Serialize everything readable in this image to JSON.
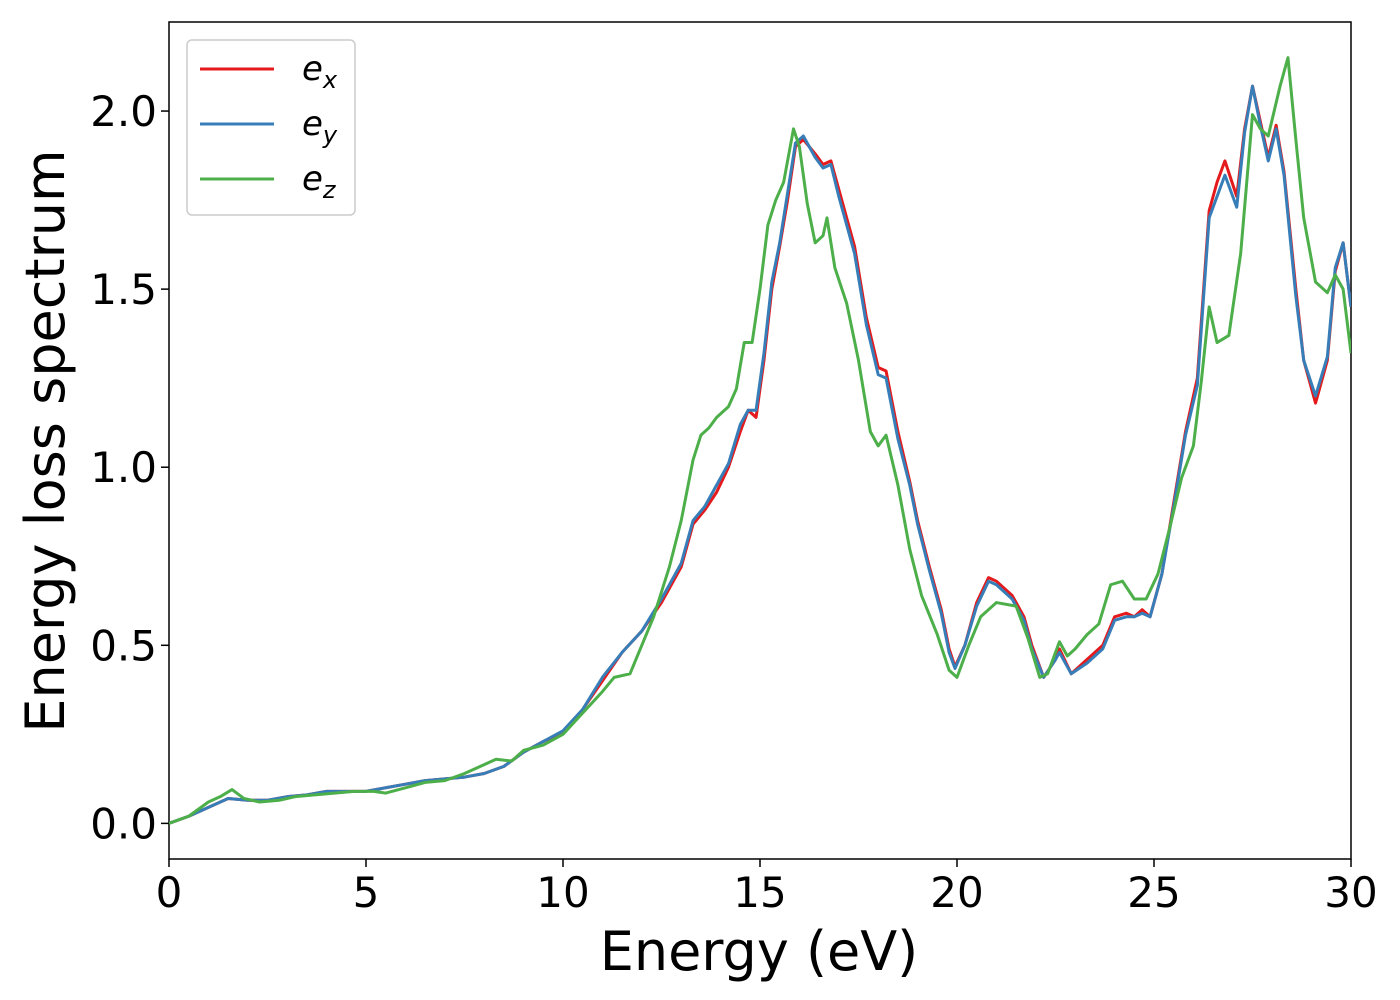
{
  "chart_data": {
    "type": "line",
    "title": "",
    "xlabel": "Energy (eV)",
    "ylabel": "Energy loss spectrum",
    "xlim": [
      0,
      30
    ],
    "ylim": [
      -0.1,
      2.25
    ],
    "xticks": [
      0,
      5,
      10,
      15,
      20,
      25,
      30
    ],
    "yticks": [
      0.0,
      0.5,
      1.0,
      1.5,
      2.0
    ],
    "xtick_labels": [
      "0",
      "5",
      "10",
      "15",
      "20",
      "25",
      "30"
    ],
    "ytick_labels": [
      "0.0",
      "0.5",
      "1.0",
      "1.5",
      "2.0"
    ],
    "grid": false,
    "legend": {
      "placement": "top-left"
    },
    "series": [
      {
        "name": "e",
        "sub": "x",
        "color": "#e41a1c",
        "points": [
          [
            0,
            0
          ],
          [
            0.5,
            0.02
          ],
          [
            1,
            0.045
          ],
          [
            1.5,
            0.07
          ],
          [
            2,
            0.065
          ],
          [
            2.5,
            0.065
          ],
          [
            3,
            0.075
          ],
          [
            3.5,
            0.08
          ],
          [
            4,
            0.09
          ],
          [
            4.5,
            0.09
          ],
          [
            5,
            0.09
          ],
          [
            5.5,
            0.1
          ],
          [
            6,
            0.11
          ],
          [
            6.5,
            0.12
          ],
          [
            7,
            0.125
          ],
          [
            7.5,
            0.13
          ],
          [
            8,
            0.14
          ],
          [
            8.5,
            0.16
          ],
          [
            9,
            0.2
          ],
          [
            9.5,
            0.23
          ],
          [
            10,
            0.255
          ],
          [
            10.5,
            0.32
          ],
          [
            11,
            0.4
          ],
          [
            11.5,
            0.48
          ],
          [
            12,
            0.54
          ],
          [
            12.5,
            0.62
          ],
          [
            13,
            0.72
          ],
          [
            13.3,
            0.84
          ],
          [
            13.6,
            0.88
          ],
          [
            13.9,
            0.93
          ],
          [
            14.2,
            1.0
          ],
          [
            14.5,
            1.1
          ],
          [
            14.7,
            1.16
          ],
          [
            14.9,
            1.14
          ],
          [
            15.1,
            1.3
          ],
          [
            15.3,
            1.5
          ],
          [
            15.5,
            1.62
          ],
          [
            15.7,
            1.75
          ],
          [
            15.9,
            1.9
          ],
          [
            16.1,
            1.92
          ],
          [
            16.4,
            1.88
          ],
          [
            16.6,
            1.85
          ],
          [
            16.8,
            1.86
          ],
          [
            17,
            1.78
          ],
          [
            17.4,
            1.62
          ],
          [
            17.7,
            1.42
          ],
          [
            18,
            1.28
          ],
          [
            18.2,
            1.27
          ],
          [
            18.5,
            1.1
          ],
          [
            18.8,
            0.96
          ],
          [
            19,
            0.85
          ],
          [
            19.3,
            0.72
          ],
          [
            19.6,
            0.6
          ],
          [
            19.8,
            0.49
          ],
          [
            19.95,
            0.44
          ],
          [
            20.2,
            0.5
          ],
          [
            20.5,
            0.62
          ],
          [
            20.8,
            0.69
          ],
          [
            21,
            0.68
          ],
          [
            21.4,
            0.64
          ],
          [
            21.7,
            0.58
          ],
          [
            21.9,
            0.5
          ],
          [
            22.2,
            0.41
          ],
          [
            22.5,
            0.46
          ],
          [
            22.6,
            0.49
          ],
          [
            22.9,
            0.42
          ],
          [
            23.3,
            0.46
          ],
          [
            23.7,
            0.5
          ],
          [
            24,
            0.58
          ],
          [
            24.3,
            0.59
          ],
          [
            24.5,
            0.58
          ],
          [
            24.7,
            0.6
          ],
          [
            24.9,
            0.58
          ],
          [
            25.2,
            0.7
          ],
          [
            25.5,
            0.9
          ],
          [
            25.8,
            1.1
          ],
          [
            26.1,
            1.25
          ],
          [
            26.4,
            1.72
          ],
          [
            26.6,
            1.8
          ],
          [
            26.8,
            1.86
          ],
          [
            27.1,
            1.76
          ],
          [
            27.3,
            1.95
          ],
          [
            27.5,
            2.07
          ],
          [
            27.7,
            1.97
          ],
          [
            27.9,
            1.87
          ],
          [
            28.1,
            1.96
          ],
          [
            28.3,
            1.83
          ],
          [
            28.6,
            1.5
          ],
          [
            28.8,
            1.3
          ],
          [
            29.1,
            1.18
          ],
          [
            29.4,
            1.3
          ],
          [
            29.6,
            1.55
          ],
          [
            29.8,
            1.63
          ],
          [
            30,
            1.45
          ]
        ]
      },
      {
        "name": "e",
        "sub": "y",
        "color": "#377eb8",
        "points": [
          [
            0,
            0
          ],
          [
            0.5,
            0.02
          ],
          [
            1,
            0.045
          ],
          [
            1.5,
            0.07
          ],
          [
            2,
            0.065
          ],
          [
            2.5,
            0.065
          ],
          [
            3,
            0.075
          ],
          [
            3.5,
            0.08
          ],
          [
            4,
            0.09
          ],
          [
            4.5,
            0.09
          ],
          [
            5,
            0.09
          ],
          [
            5.5,
            0.1
          ],
          [
            6,
            0.11
          ],
          [
            6.5,
            0.12
          ],
          [
            7,
            0.125
          ],
          [
            7.5,
            0.13
          ],
          [
            8,
            0.14
          ],
          [
            8.5,
            0.16
          ],
          [
            9,
            0.2
          ],
          [
            9.5,
            0.23
          ],
          [
            10,
            0.26
          ],
          [
            10.5,
            0.32
          ],
          [
            11,
            0.41
          ],
          [
            11.5,
            0.48
          ],
          [
            12,
            0.54
          ],
          [
            12.5,
            0.63
          ],
          [
            13,
            0.73
          ],
          [
            13.3,
            0.85
          ],
          [
            13.6,
            0.89
          ],
          [
            13.9,
            0.95
          ],
          [
            14.2,
            1.01
          ],
          [
            14.5,
            1.12
          ],
          [
            14.7,
            1.16
          ],
          [
            14.9,
            1.16
          ],
          [
            15.1,
            1.32
          ],
          [
            15.3,
            1.52
          ],
          [
            15.5,
            1.63
          ],
          [
            15.7,
            1.77
          ],
          [
            15.9,
            1.91
          ],
          [
            16.1,
            1.93
          ],
          [
            16.4,
            1.87
          ],
          [
            16.6,
            1.84
          ],
          [
            16.8,
            1.85
          ],
          [
            17,
            1.76
          ],
          [
            17.4,
            1.6
          ],
          [
            17.7,
            1.4
          ],
          [
            18,
            1.26
          ],
          [
            18.2,
            1.25
          ],
          [
            18.5,
            1.08
          ],
          [
            18.8,
            0.95
          ],
          [
            19,
            0.84
          ],
          [
            19.3,
            0.71
          ],
          [
            19.6,
            0.59
          ],
          [
            19.8,
            0.48
          ],
          [
            19.95,
            0.435
          ],
          [
            20.2,
            0.5
          ],
          [
            20.5,
            0.61
          ],
          [
            20.8,
            0.68
          ],
          [
            21,
            0.67
          ],
          [
            21.4,
            0.63
          ],
          [
            21.7,
            0.57
          ],
          [
            21.9,
            0.49
          ],
          [
            22.2,
            0.41
          ],
          [
            22.5,
            0.46
          ],
          [
            22.6,
            0.48
          ],
          [
            22.9,
            0.42
          ],
          [
            23.3,
            0.45
          ],
          [
            23.7,
            0.49
          ],
          [
            24,
            0.57
          ],
          [
            24.3,
            0.58
          ],
          [
            24.5,
            0.58
          ],
          [
            24.7,
            0.59
          ],
          [
            24.9,
            0.58
          ],
          [
            25.2,
            0.7
          ],
          [
            25.5,
            0.89
          ],
          [
            25.8,
            1.09
          ],
          [
            26.1,
            1.23
          ],
          [
            26.4,
            1.7
          ],
          [
            26.6,
            1.76
          ],
          [
            26.8,
            1.82
          ],
          [
            27.1,
            1.73
          ],
          [
            27.3,
            1.94
          ],
          [
            27.5,
            2.07
          ],
          [
            27.7,
            1.96
          ],
          [
            27.9,
            1.86
          ],
          [
            28.1,
            1.95
          ],
          [
            28.3,
            1.82
          ],
          [
            28.6,
            1.48
          ],
          [
            28.8,
            1.3
          ],
          [
            29.1,
            1.2
          ],
          [
            29.4,
            1.31
          ],
          [
            29.6,
            1.56
          ],
          [
            29.8,
            1.63
          ],
          [
            30,
            1.45
          ]
        ]
      },
      {
        "name": "e",
        "sub": "z",
        "color": "#4daf4a",
        "points": [
          [
            0,
            0
          ],
          [
            0.5,
            0.02
          ],
          [
            1,
            0.06
          ],
          [
            1.3,
            0.075
          ],
          [
            1.6,
            0.095
          ],
          [
            1.9,
            0.07
          ],
          [
            2.3,
            0.06
          ],
          [
            2.8,
            0.065
          ],
          [
            3.2,
            0.075
          ],
          [
            3.7,
            0.08
          ],
          [
            4.2,
            0.085
          ],
          [
            4.7,
            0.09
          ],
          [
            5.2,
            0.09
          ],
          [
            5.5,
            0.085
          ],
          [
            6,
            0.1
          ],
          [
            6.5,
            0.115
          ],
          [
            7,
            0.12
          ],
          [
            7.5,
            0.14
          ],
          [
            8,
            0.165
          ],
          [
            8.3,
            0.18
          ],
          [
            8.7,
            0.175
          ],
          [
            9,
            0.205
          ],
          [
            9.5,
            0.22
          ],
          [
            10,
            0.25
          ],
          [
            10.5,
            0.31
          ],
          [
            11,
            0.37
          ],
          [
            11.3,
            0.41
          ],
          [
            11.7,
            0.42
          ],
          [
            12,
            0.5
          ],
          [
            12.3,
            0.58
          ],
          [
            12.7,
            0.72
          ],
          [
            13,
            0.85
          ],
          [
            13.3,
            1.02
          ],
          [
            13.5,
            1.09
          ],
          [
            13.7,
            1.11
          ],
          [
            13.9,
            1.14
          ],
          [
            14.2,
            1.17
          ],
          [
            14.4,
            1.22
          ],
          [
            14.6,
            1.35
          ],
          [
            14.8,
            1.35
          ],
          [
            15,
            1.5
          ],
          [
            15.2,
            1.68
          ],
          [
            15.4,
            1.75
          ],
          [
            15.6,
            1.8
          ],
          [
            15.85,
            1.95
          ],
          [
            16,
            1.9
          ],
          [
            16.2,
            1.74
          ],
          [
            16.4,
            1.63
          ],
          [
            16.6,
            1.65
          ],
          [
            16.7,
            1.7
          ],
          [
            16.9,
            1.56
          ],
          [
            17.2,
            1.46
          ],
          [
            17.5,
            1.3
          ],
          [
            17.8,
            1.1
          ],
          [
            18,
            1.06
          ],
          [
            18.2,
            1.09
          ],
          [
            18.5,
            0.95
          ],
          [
            18.8,
            0.77
          ],
          [
            19.1,
            0.64
          ],
          [
            19.5,
            0.53
          ],
          [
            19.8,
            0.43
          ],
          [
            20,
            0.41
          ],
          [
            20.3,
            0.5
          ],
          [
            20.6,
            0.58
          ],
          [
            21,
            0.62
          ],
          [
            21.5,
            0.61
          ],
          [
            21.8,
            0.52
          ],
          [
            22.1,
            0.41
          ],
          [
            22.3,
            0.42
          ],
          [
            22.6,
            0.51
          ],
          [
            22.8,
            0.47
          ],
          [
            23,
            0.49
          ],
          [
            23.3,
            0.53
          ],
          [
            23.6,
            0.56
          ],
          [
            23.9,
            0.67
          ],
          [
            24.2,
            0.68
          ],
          [
            24.5,
            0.63
          ],
          [
            24.8,
            0.63
          ],
          [
            25.1,
            0.7
          ],
          [
            25.4,
            0.83
          ],
          [
            25.7,
            0.97
          ],
          [
            26,
            1.06
          ],
          [
            26.2,
            1.24
          ],
          [
            26.4,
            1.45
          ],
          [
            26.6,
            1.35
          ],
          [
            26.9,
            1.37
          ],
          [
            27.2,
            1.6
          ],
          [
            27.5,
            1.99
          ],
          [
            27.7,
            1.95
          ],
          [
            27.9,
            1.93
          ],
          [
            28.2,
            2.07
          ],
          [
            28.4,
            2.15
          ],
          [
            28.6,
            1.92
          ],
          [
            28.8,
            1.7
          ],
          [
            29.1,
            1.52
          ],
          [
            29.4,
            1.49
          ],
          [
            29.6,
            1.54
          ],
          [
            29.8,
            1.5
          ],
          [
            30,
            1.32
          ]
        ]
      }
    ]
  }
}
